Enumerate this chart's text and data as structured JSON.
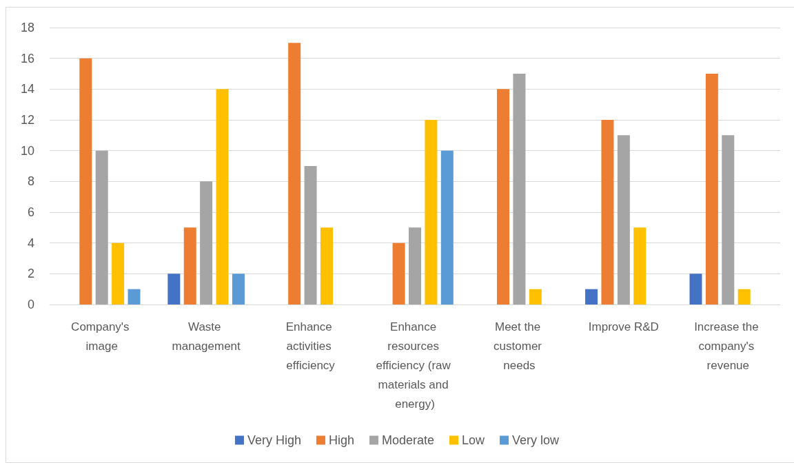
{
  "chart_data": {
    "type": "bar",
    "categories": [
      "Company's image",
      "Waste management",
      "Enhance activities efficiency",
      "Enhance resources efficiency (raw materials and energy)",
      "Meet the customer needs",
      "Improve R&D",
      "Increase the company's revenue"
    ],
    "series": [
      {
        "name": "Very High",
        "color": "#4472c4",
        "values": [
          null,
          2,
          null,
          null,
          null,
          1,
          2
        ]
      },
      {
        "name": "High",
        "color": "#ed7d31",
        "values": [
          16,
          5,
          17,
          4,
          14,
          12,
          15
        ]
      },
      {
        "name": "Moderate",
        "color": "#a5a5a5",
        "values": [
          10,
          8,
          9,
          5,
          15,
          11,
          11
        ]
      },
      {
        "name": "Low",
        "color": "#ffc000",
        "values": [
          4,
          14,
          5,
          12,
          1,
          5,
          1
        ]
      },
      {
        "name": "Very low",
        "color": "#5b9bd5",
        "values": [
          1,
          2,
          null,
          10,
          null,
          null,
          null
        ]
      }
    ],
    "ylim": [
      0,
      18
    ],
    "yticks": [
      0,
      2,
      4,
      6,
      8,
      10,
      12,
      14,
      16,
      18
    ],
    "grid": "y",
    "legend": "bottom"
  }
}
